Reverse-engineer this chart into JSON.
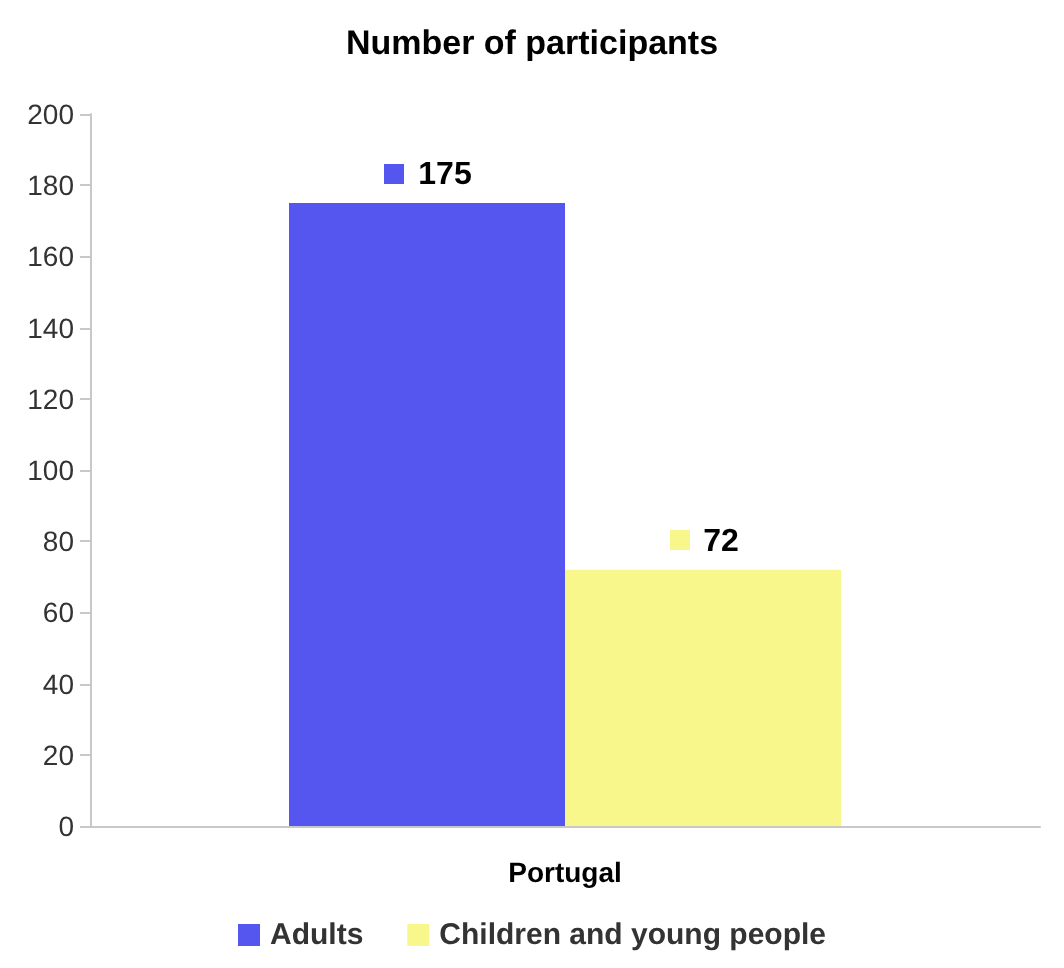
{
  "chart_data": {
    "type": "bar",
    "title": "Number of participants",
    "categories": [
      "Portugal"
    ],
    "series": [
      {
        "name": "Adults",
        "color": "#5555ef",
        "values": [
          175
        ]
      },
      {
        "name": "Children and young people",
        "color": "#f7f78c",
        "values": [
          72
        ]
      }
    ],
    "ylim": [
      0,
      200
    ],
    "yticks": [
      0,
      20,
      40,
      60,
      80,
      100,
      120,
      140,
      160,
      180,
      200
    ],
    "grid": false,
    "legend": "bottom",
    "data_labels": true
  }
}
